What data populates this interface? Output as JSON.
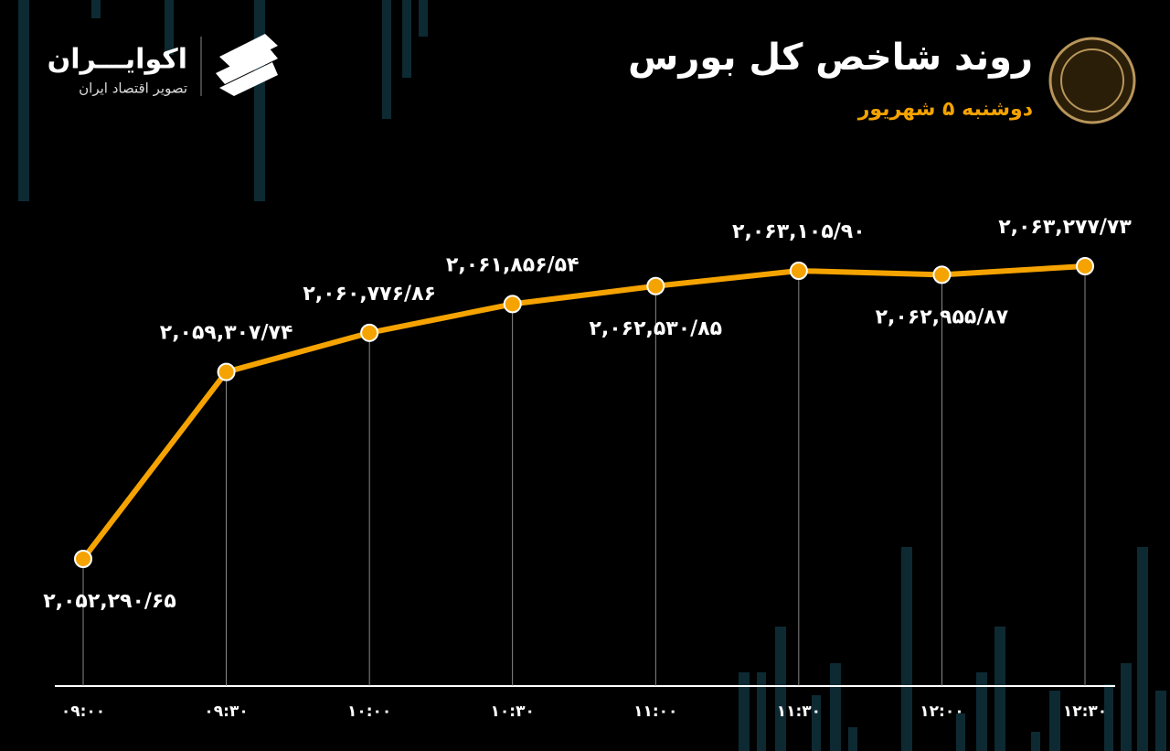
{
  "chart_data": {
    "type": "line",
    "title": "روند شاخص کل بورس",
    "subtitle": "دوشنبه ۵ شهریور",
    "brand": "اکوایـــران",
    "brand_tagline": "تصویر اقتصاد ایران",
    "categories": [
      "۰۹:۰۰",
      "۰۹:۳۰",
      "۱۰:۰۰",
      "۱۰:۳۰",
      "۱۱:۰۰",
      "۱۱:۳۰",
      "۱۲:۰۰",
      "۱۲:۳۰"
    ],
    "series": [
      {
        "color": "#f5a300",
        "values": [
          2052290.65,
          2059307.74,
          2060776.86,
          2061856.54,
          2062530.85,
          2063105.9,
          2062955.87,
          2063277.73
        ],
        "value_labels": [
          "۲,۰۵۲,۲۹۰/۶۵",
          "۲,۰۵۹,۳۰۷/۷۴",
          "۲,۰۶۰,۷۷۶/۸۶",
          "۲,۰۶۱,۸۵۶/۵۴",
          "۲,۰۶۲,۵۳۰/۸۵",
          "۲,۰۶۳,۱۰۵/۹۰",
          "۲,۰۶۲,۹۵۵/۸۷",
          "۲,۰۶۳,۲۷۷/۷۳"
        ]
      }
    ]
  }
}
